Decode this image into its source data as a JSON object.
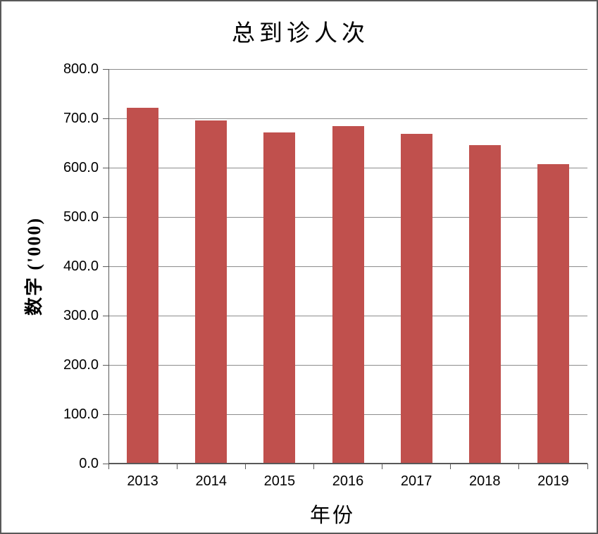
{
  "chart_data": {
    "type": "bar",
    "title": "总到诊人次",
    "xlabel": "年份",
    "ylabel": "数字 ('000)",
    "categories": [
      "2013",
      "2014",
      "2015",
      "2016",
      "2017",
      "2018",
      "2019"
    ],
    "values": [
      722,
      696,
      671,
      684,
      668,
      646,
      607
    ],
    "ylim": [
      0,
      800
    ],
    "ytick_step": 100,
    "ytick_labels": [
      "0.0",
      "100.0",
      "200.0",
      "300.0",
      "400.0",
      "500.0",
      "600.0",
      "700.0",
      "800.0"
    ],
    "grid": true,
    "legend_position": "none",
    "bar_color": "#C0504D",
    "gridline_color": "#8C8C8C",
    "axis_color": "#595959",
    "text_color": "#000000",
    "background_color": "#FFFFFF"
  }
}
